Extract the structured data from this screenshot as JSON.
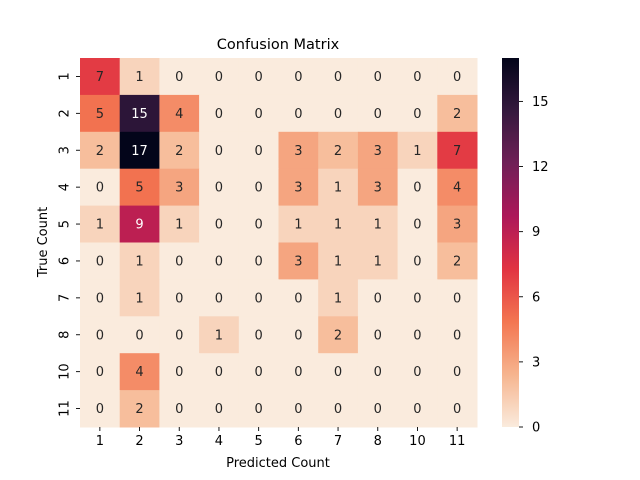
{
  "chart_data": {
    "type": "heatmap",
    "title": "Confusion Matrix",
    "xlabel": "Predicted Count",
    "ylabel": "True Count",
    "x_categories": [
      "1",
      "2",
      "3",
      "4",
      "5",
      "6",
      "7",
      "8",
      "10",
      "11"
    ],
    "y_categories": [
      "1",
      "2",
      "3",
      "4",
      "5",
      "6",
      "7",
      "8",
      "10",
      "11"
    ],
    "values": [
      [
        7,
        1,
        0,
        0,
        0,
        0,
        0,
        0,
        0,
        0
      ],
      [
        5,
        15,
        4,
        0,
        0,
        0,
        0,
        0,
        0,
        2
      ],
      [
        2,
        17,
        2,
        0,
        0,
        3,
        2,
        3,
        1,
        7
      ],
      [
        0,
        5,
        3,
        0,
        0,
        3,
        1,
        3,
        0,
        4
      ],
      [
        1,
        9,
        1,
        0,
        0,
        1,
        1,
        1,
        0,
        3
      ],
      [
        0,
        1,
        0,
        0,
        0,
        3,
        1,
        1,
        0,
        2
      ],
      [
        0,
        1,
        0,
        0,
        0,
        0,
        1,
        0,
        0,
        0
      ],
      [
        0,
        0,
        0,
        1,
        0,
        0,
        2,
        0,
        0,
        0
      ],
      [
        0,
        4,
        0,
        0,
        0,
        0,
        0,
        0,
        0,
        0
      ],
      [
        0,
        2,
        0,
        0,
        0,
        0,
        0,
        0,
        0,
        0
      ]
    ],
    "colorbar": {
      "min": 0,
      "max": 17,
      "ticks": [
        0,
        3,
        6,
        9,
        12,
        15
      ]
    },
    "colormap": [
      "#faebdd",
      "#f6b48e",
      "#f37651",
      "#e13342",
      "#ad1759",
      "#701f57",
      "#35193e",
      "#03051a"
    ]
  }
}
